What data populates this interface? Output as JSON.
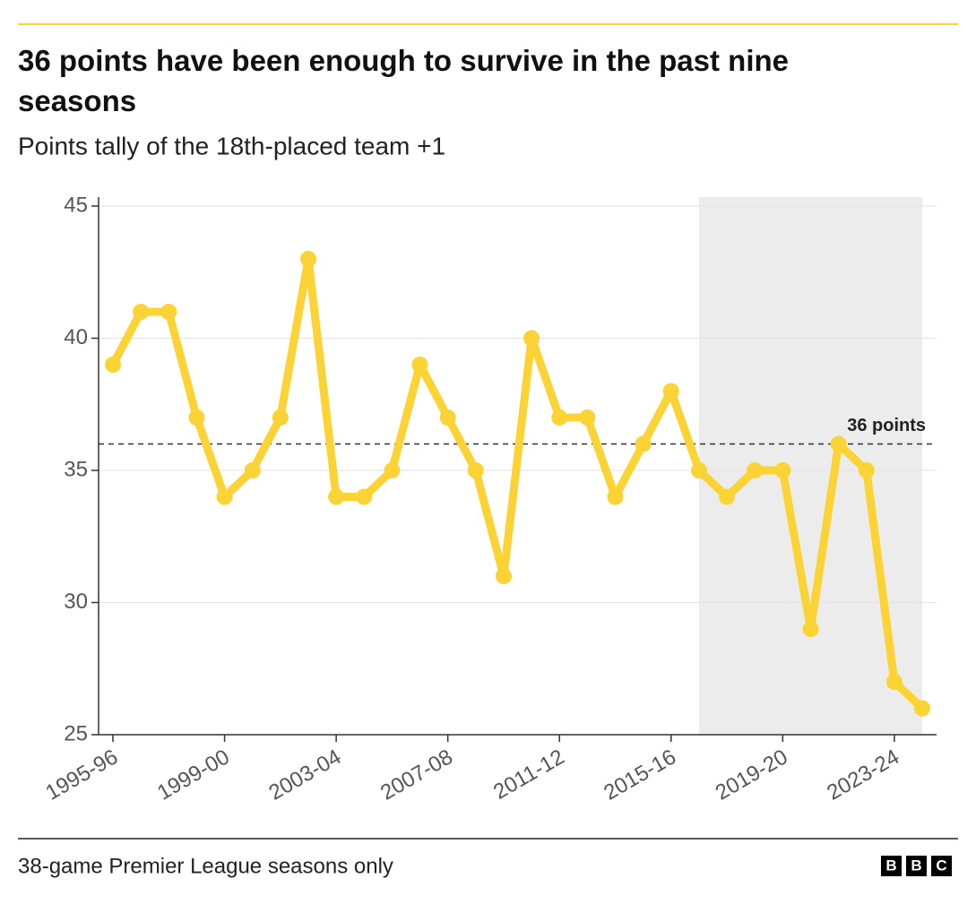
{
  "chart_data": {
    "type": "line",
    "title": "36 points have been enough to survive in the past nine seasons",
    "subtitle": "Points tally of the 18th-placed team +1",
    "categories": [
      "1995-96",
      null,
      null,
      null,
      "1999-00",
      null,
      null,
      null,
      "2003-04",
      null,
      null,
      null,
      "2007-08",
      null,
      null,
      null,
      "2011-12",
      null,
      null,
      null,
      "2015-16",
      null,
      null,
      null,
      "2019-20",
      null,
      null,
      null,
      "2023-24",
      null
    ],
    "values": [
      39,
      41,
      41,
      37,
      34,
      35,
      37,
      43,
      34,
      34,
      35,
      39,
      37,
      35,
      31,
      40,
      37,
      37,
      34,
      36,
      38,
      35,
      34,
      35,
      35,
      29,
      36,
      35,
      27,
      26
    ],
    "color": "#fbd334",
    "ylim": [
      25,
      45
    ],
    "yticks": [
      25,
      30,
      35,
      40,
      45
    ],
    "grid": true,
    "reference_line": {
      "value": 36,
      "label": "36 points"
    },
    "footnote": "38-game Premier League seasons only",
    "logo": [
      "B",
      "B",
      "C"
    ]
  }
}
